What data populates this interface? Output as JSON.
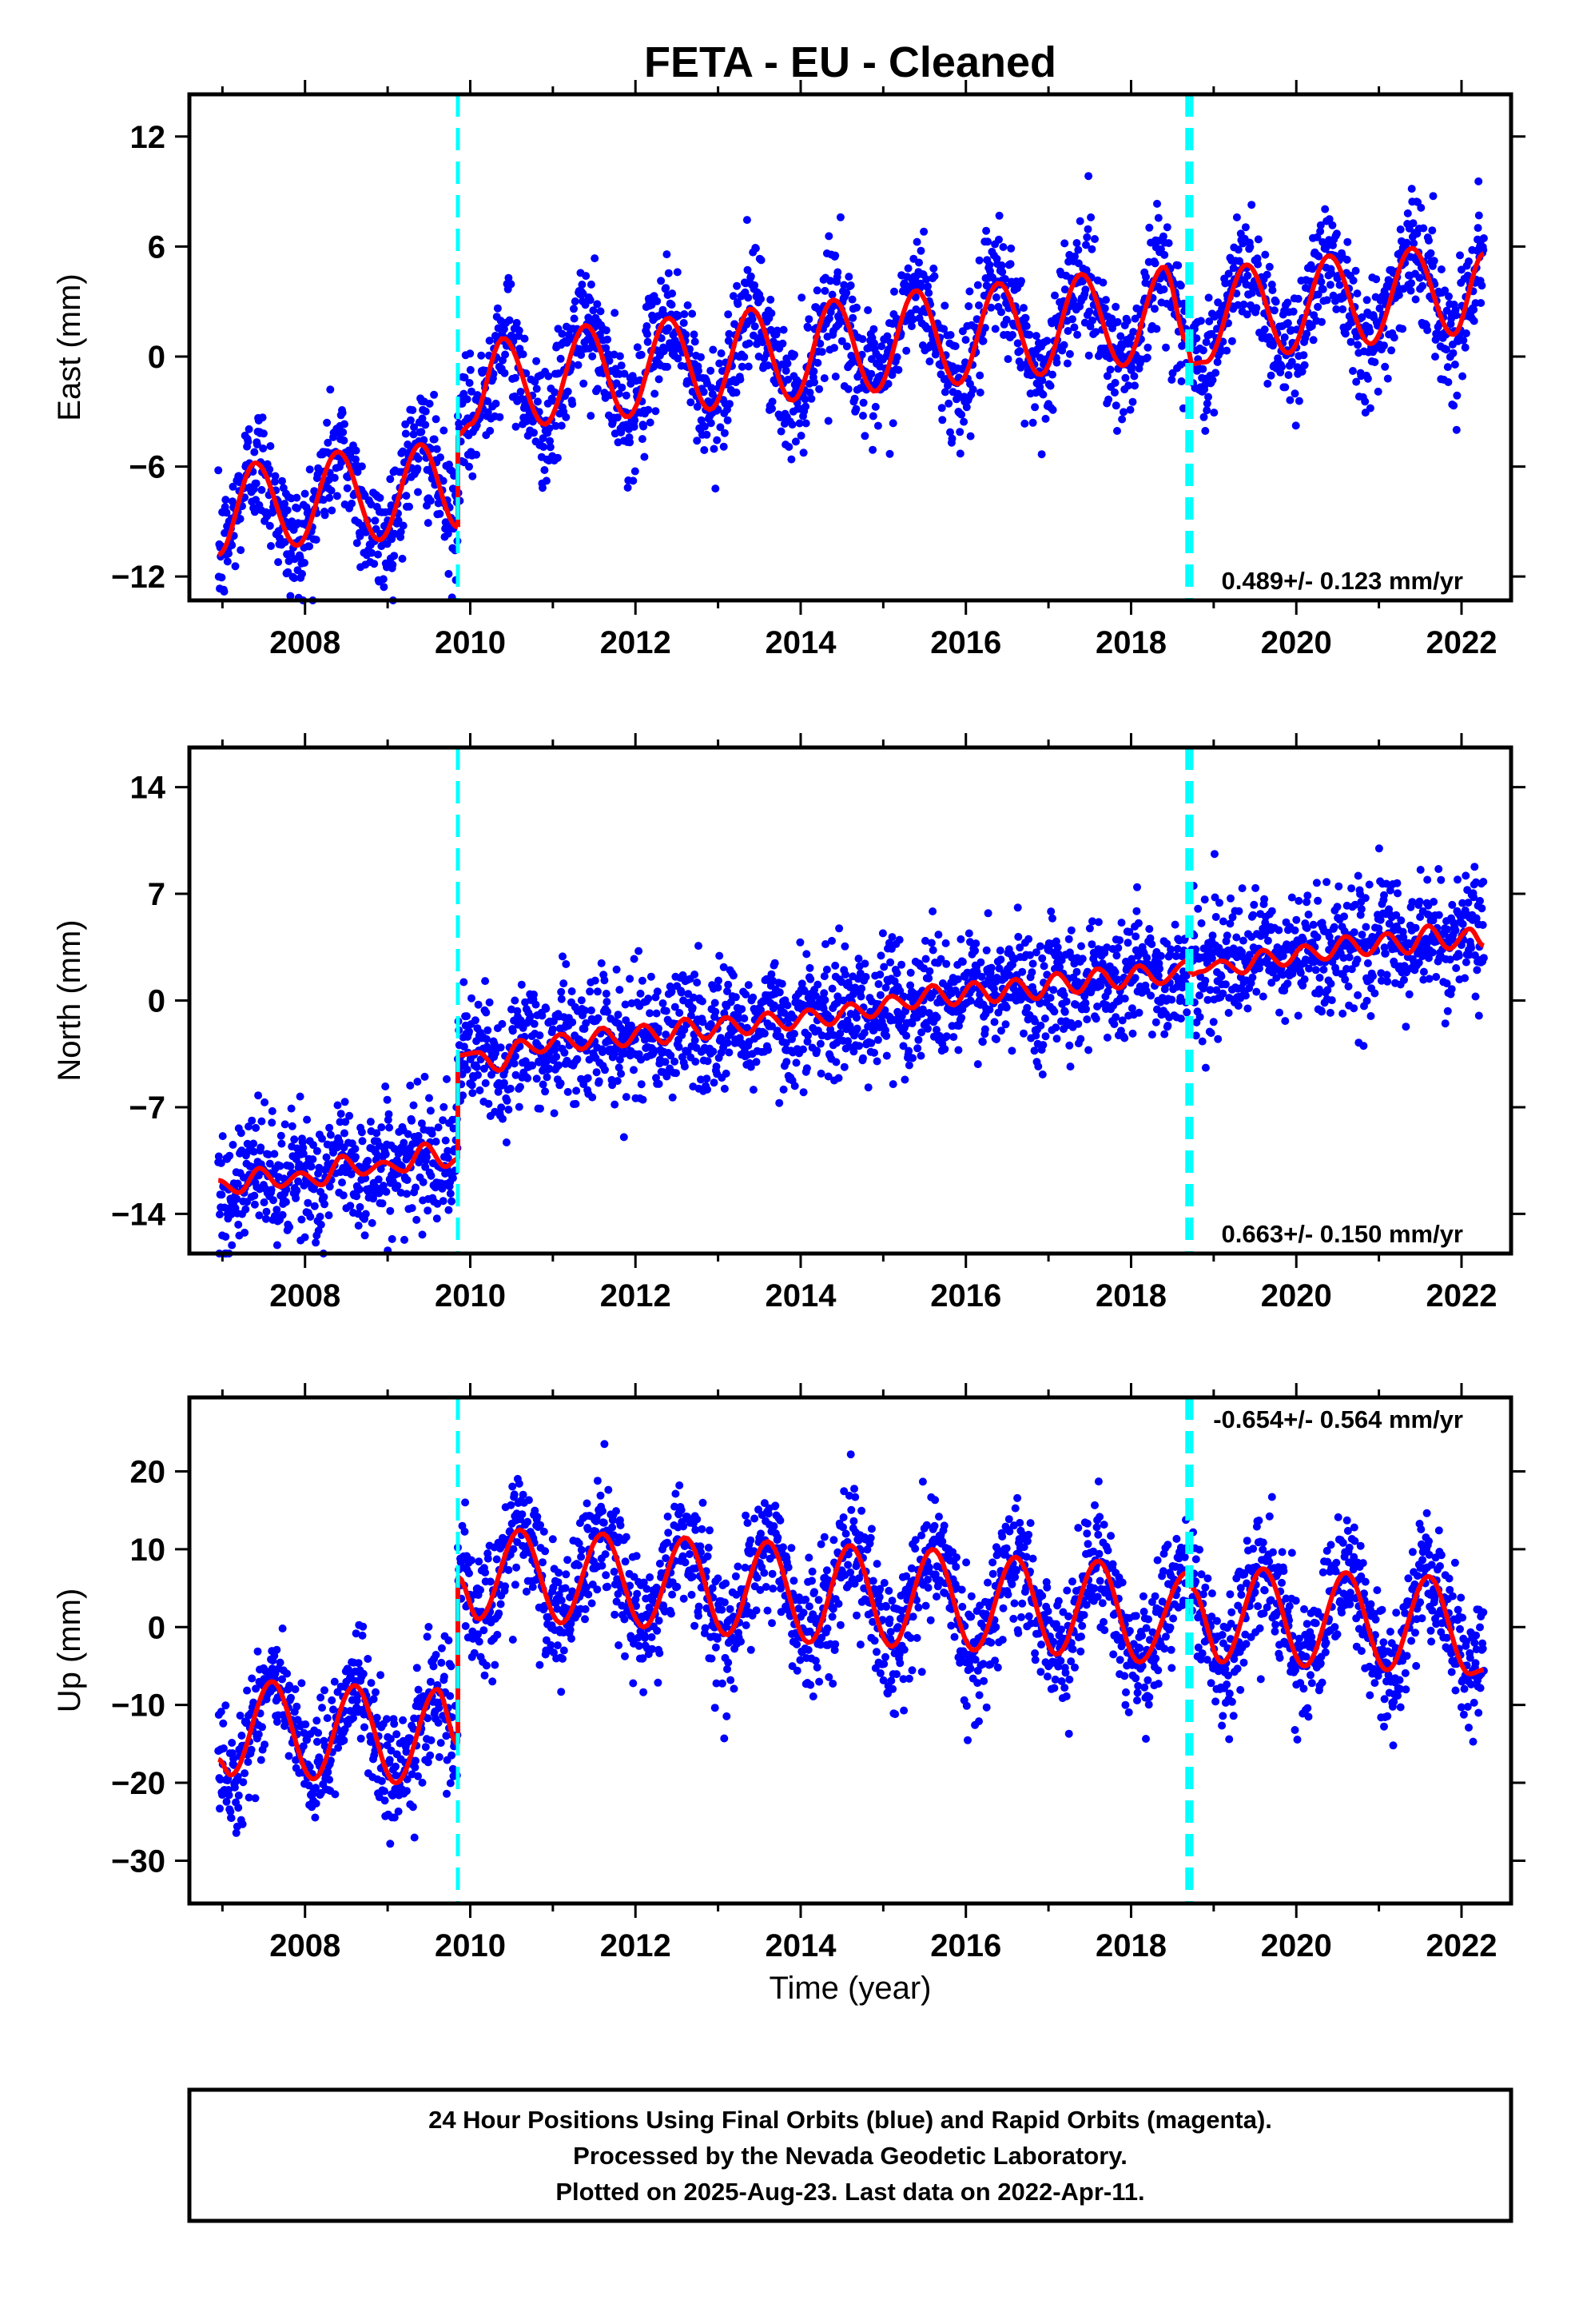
{
  "title": "FETA  - EU - Cleaned",
  "xlabel": "Time (year)",
  "footer": {
    "lines": [
      "24 Hour Positions Using Final Orbits (blue) and Rapid Orbits (magenta).",
      "Processed by the Nevada Geodetic Laboratory.",
      "Plotted on 2025-Aug-23. Last data on 2022-Apr-11."
    ]
  },
  "colors": {
    "data": "#0000ff",
    "model": "#ff0000",
    "steps": "#00ffff",
    "frame": "#000000"
  },
  "chart_data": [
    {
      "type": "scatter",
      "component": "east",
      "ylabel": "East (mm)",
      "rate_text": "0.489+/- 0.123 mm/yr",
      "xlim": [
        2006.6,
        2022.6
      ],
      "ylim": [
        -13.3,
        14.3
      ],
      "xticks": [
        2008,
        2010,
        2012,
        2014,
        2016,
        2018,
        2020,
        2022
      ],
      "yticks": [
        -12,
        -6,
        0,
        6,
        12
      ],
      "grid": false,
      "steps": [
        2009.85,
        2018.68,
        2018.73
      ],
      "data_range": [
        2006.95,
        2022.27
      ],
      "model": {
        "segments": [
          {
            "x": [
              2006.95,
              2007.4,
              2007.9,
              2008.4,
              2008.9,
              2009.4,
              2009.85
            ],
            "y": [
              -10.8,
              -5.8,
              -10.3,
              -5.2,
              -10.0,
              -4.8,
              -9.3
            ]
          },
          {
            "x": [
              2009.85,
              2010.0,
              2010.4,
              2010.9,
              2011.4,
              2011.9,
              2012.4,
              2012.9,
              2013.4,
              2013.9,
              2014.4,
              2014.9,
              2015.4,
              2015.9,
              2016.4,
              2016.9,
              2017.4,
              2017.9,
              2018.4,
              2018.68
            ],
            "y": [
              -4.3,
              -3.7,
              1.0,
              -3.7,
              1.7,
              -3.3,
              2.1,
              -2.9,
              2.6,
              -2.4,
              3.1,
              -1.9,
              3.6,
              -1.5,
              4.0,
              -1.0,
              4.5,
              -0.5,
              4.9,
              0.8
            ]
          },
          {
            "x": [
              2018.73,
              2018.9,
              2019.4,
              2019.9,
              2020.4,
              2020.9,
              2021.4,
              2021.9,
              2022.27
            ],
            "y": [
              -0.4,
              -0.3,
              5.0,
              0.2,
              5.5,
              0.7,
              5.9,
              1.2,
              5.6
            ]
          }
        ]
      }
    },
    {
      "type": "scatter",
      "component": "north",
      "ylabel": "North (mm)",
      "rate_text": "0.663+/- 0.150 mm/yr",
      "xlim": [
        2006.6,
        2022.6
      ],
      "ylim": [
        -16.6,
        16.6
      ],
      "xticks": [
        2008,
        2010,
        2012,
        2014,
        2016,
        2018,
        2020,
        2022
      ],
      "yticks": [
        -14,
        -7,
        0,
        7,
        14
      ],
      "grid": false,
      "steps": [
        2009.85,
        2018.68,
        2018.73
      ],
      "data_range": [
        2006.95,
        2022.27
      ],
      "model": {
        "segments": [
          {
            "x": [
              2006.95,
              2007.2,
              2007.45,
              2007.7,
              2007.95,
              2008.2,
              2008.45,
              2008.7,
              2008.95,
              2009.2,
              2009.45,
              2009.7,
              2009.85
            ],
            "y": [
              -11.8,
              -12.6,
              -11.0,
              -12.2,
              -11.3,
              -12.1,
              -10.2,
              -11.4,
              -10.6,
              -11.2,
              -9.4,
              -10.9,
              -10.4
            ]
          },
          {
            "x": [
              2009.85,
              2010.1,
              2010.35,
              2010.6,
              2010.85,
              2011.1,
              2011.35,
              2011.6,
              2011.85,
              2012.1,
              2012.35,
              2012.6,
              2012.85,
              2013.1,
              2013.35,
              2013.6,
              2013.85,
              2014.1,
              2014.35,
              2014.6,
              2014.85,
              2015.1,
              2015.35,
              2015.6,
              2015.85,
              2016.1,
              2016.35,
              2016.6,
              2016.85,
              2017.1,
              2017.35,
              2017.6,
              2017.85,
              2018.1,
              2018.35,
              2018.68
            ],
            "y": [
              -3.6,
              -3.4,
              -4.6,
              -2.6,
              -3.4,
              -2.2,
              -3.2,
              -1.8,
              -3.0,
              -1.6,
              -2.8,
              -1.2,
              -2.5,
              -1.1,
              -2.2,
              -0.8,
              -1.9,
              -0.6,
              -1.6,
              -0.2,
              -1.1,
              0.3,
              -0.5,
              1.0,
              -0.3,
              1.2,
              -0.1,
              1.4,
              0.1,
              1.8,
              0.5,
              2.1,
              0.8,
              2.3,
              1.1,
              2.6
            ]
          },
          {
            "x": [
              2018.73,
              2018.85,
              2019.1,
              2019.35,
              2019.6,
              2019.85,
              2020.1,
              2020.35,
              2020.6,
              2020.85,
              2021.1,
              2021.35,
              2021.6,
              2021.85,
              2022.1,
              2022.27
            ],
            "y": [
              1.7,
              1.9,
              2.6,
              1.8,
              3.3,
              2.3,
              3.6,
              2.7,
              4.2,
              3.0,
              4.4,
              3.1,
              4.9,
              3.4,
              4.7,
              3.6
            ]
          }
        ]
      }
    },
    {
      "type": "scatter",
      "component": "up",
      "ylabel": "Up (mm)",
      "rate_text": "-0.654+/- 0.564 mm/yr",
      "xlim": [
        2006.6,
        2022.6
      ],
      "ylim": [
        -35.5,
        29.5
      ],
      "xticks": [
        2008,
        2010,
        2012,
        2014,
        2016,
        2018,
        2020,
        2022
      ],
      "yticks": [
        -30,
        -20,
        -10,
        0,
        10,
        20
      ],
      "grid": false,
      "steps": [
        2009.85,
        2018.68,
        2018.73
      ],
      "data_range": [
        2006.95,
        2022.27
      ],
      "model": {
        "segments": [
          {
            "x": [
              2006.95,
              2007.1,
              2007.6,
              2008.1,
              2008.6,
              2009.1,
              2009.6,
              2009.85
            ],
            "y": [
              -17.0,
              -19.0,
              -7.0,
              -19.5,
              -7.5,
              -20.0,
              -8.0,
              -15.0
            ]
          },
          {
            "x": [
              2009.85,
              2010.1,
              2010.6,
              2011.1,
              2011.6,
              2012.1,
              2012.6,
              2013.1,
              2013.6,
              2014.1,
              2014.6,
              2015.1,
              2015.6,
              2016.1,
              2016.6,
              2017.1,
              2017.6,
              2018.1,
              2018.68
            ],
            "y": [
              6.5,
              1.0,
              12.5,
              0.5,
              12.0,
              0.0,
              11.5,
              -1.0,
              11.0,
              -2.0,
              10.5,
              -2.5,
              10.0,
              -3.0,
              9.0,
              -3.5,
              8.5,
              -4.5,
              7.0
            ]
          },
          {
            "x": [
              2018.73,
              2019.1,
              2019.6,
              2020.1,
              2020.6,
              2021.1,
              2021.6,
              2022.1,
              2022.27
            ],
            "y": [
              5.0,
              -4.5,
              7.5,
              -5.0,
              7.0,
              -5.5,
              6.5,
              -6.0,
              -5.5
            ]
          }
        ]
      }
    }
  ]
}
